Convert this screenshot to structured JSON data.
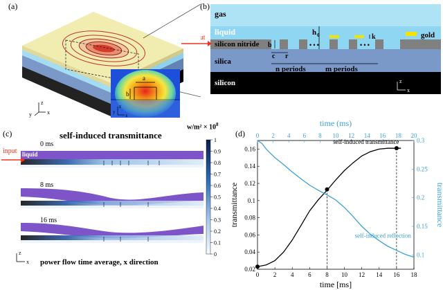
{
  "panels": {
    "a": "(a)",
    "b": "(b)",
    "c": "(c)",
    "d": "(d)"
  },
  "panel_a": {
    "inset_labels": {
      "a": "a",
      "b": "b",
      "z": "z",
      "y": "y",
      "x": "x"
    },
    "axis_labels": {
      "z": "z",
      "y": "y",
      "x": "x"
    }
  },
  "panel_b": {
    "layers": {
      "gas": "gas",
      "liquid": "liquid",
      "silicon_nitride": "silicon nitride",
      "silica": "silica",
      "silicon": "silicon"
    },
    "legend_gold": "gold",
    "input": "input",
    "dims": {
      "b": "b",
      "h0": "h",
      "h0_sub": "0",
      "k": "k",
      "c": "c",
      "r": "r",
      "n_periods": "n periods",
      "m_periods": "m periods",
      "dots": "• • •"
    },
    "axes": {
      "z": "z",
      "x": "x"
    },
    "colors": {
      "gas": "#aee3f5",
      "liquid": "#8fd6f2",
      "nitride": "#808080",
      "silica": "#7a98c8",
      "silicon": "#000000",
      "gold": "#f2e400"
    }
  },
  "panel_c": {
    "title": "self-induced transmittance",
    "input": "input",
    "liquid": "liquid",
    "times": [
      "0 ms",
      "8 ms",
      "16 ms"
    ],
    "caption": "power flow time average, x direction",
    "colorbar_unit": "w/m² × 10",
    "colorbar_exp": "8",
    "colorbar_ticks": [
      "1",
      "0.9",
      "0.8",
      "0.7",
      "0.6",
      "0.5",
      "0.4",
      "0.3",
      "0.2",
      "0.1",
      "0"
    ],
    "axes": {
      "z": "z",
      "x": "x"
    }
  },
  "chart_data": {
    "type": "line",
    "xlabel": "time [ms]",
    "ylabel": "transmittance",
    "top_xlabel": "time (ms)",
    "right_ylabel": "transmittance",
    "xlim": [
      0,
      18
    ],
    "ylim": [
      0.02,
      0.17
    ],
    "top_xlim": [
      0,
      20
    ],
    "right_ylim": [
      0.075,
      0.3
    ],
    "x_ticks": [
      "0",
      "2",
      "4",
      "6",
      "8",
      "10",
      "12",
      "14",
      "16",
      "18"
    ],
    "y_ticks": [
      "0.02",
      "0.04",
      "0.06",
      "0.08",
      "0.1",
      "0.12",
      "0.14",
      "0.16"
    ],
    "top_ticks": [
      "0",
      "2",
      "4",
      "6",
      "8",
      "10",
      "12",
      "14",
      "16",
      "18",
      "20"
    ],
    "right_ticks": [
      "0.1",
      "0.15",
      "0.2",
      "0.25",
      "0.3"
    ],
    "series": [
      {
        "name": "self-induced transmittance",
        "axis": "left",
        "color": "#000000",
        "x": [
          0,
          0.5,
          1,
          2,
          3,
          4,
          5,
          6,
          7,
          8,
          9,
          10,
          11,
          12,
          13,
          14,
          15,
          16,
          16.5
        ],
        "y": [
          0.023,
          0.024,
          0.025,
          0.03,
          0.04,
          0.054,
          0.071,
          0.088,
          0.101,
          0.112,
          0.124,
          0.135,
          0.144,
          0.152,
          0.157,
          0.16,
          0.161,
          0.161,
          0.161
        ]
      },
      {
        "name": "self-induced reflection",
        "axis": "right",
        "color": "#3aa0d8",
        "x": [
          0,
          0.5,
          1,
          2,
          3,
          4,
          5,
          6,
          7,
          8,
          9,
          10,
          11,
          12,
          13,
          14,
          15,
          16,
          17,
          18
        ],
        "y": [
          0.3,
          0.295,
          0.285,
          0.27,
          0.258,
          0.245,
          0.233,
          0.222,
          0.213,
          0.205,
          0.196,
          0.183,
          0.167,
          0.15,
          0.136,
          0.125,
          0.115,
          0.108,
          0.101,
          0.096
        ]
      }
    ],
    "markers": [
      {
        "x": 0,
        "y": 0.023
      },
      {
        "x": 8,
        "y": 0.113
      },
      {
        "x": 16,
        "y": 0.161
      }
    ],
    "dashed_x": [
      8,
      16
    ],
    "annotations": {
      "transmittance": "self-induced transmittance",
      "reflection": "self-induced reflection"
    }
  }
}
